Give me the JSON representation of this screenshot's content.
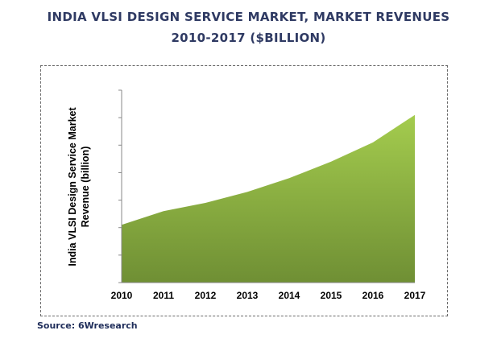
{
  "title_line1": "INDIA VLSI DESIGN SERVICE MARKET, MARKET REVENUES",
  "title_line2": "2010-2017 ($BILLION)",
  "source": "Source: 6Wresearch",
  "chart_data": {
    "type": "area",
    "title": "INDIA VLSI DESIGN SERVICE MARKET, MARKET REVENUES 2010-2017 ($BILLION)",
    "x": [
      "2010",
      "2011",
      "2012",
      "2013",
      "2014",
      "2015",
      "2016",
      "2017"
    ],
    "values": [
      2.1,
      2.6,
      2.9,
      3.3,
      3.8,
      4.4,
      5.1,
      6.1
    ],
    "ylabel_line1": "India VLSI Design Service Market",
    "ylabel_line2": "Revenue (billion)",
    "xlabel": "",
    "ylim": [
      0,
      7
    ],
    "yticks_labeled": false,
    "grid": false,
    "legend": "none",
    "fill_top_color": "#a4cc4e",
    "fill_bottom_color": "#6f8f34",
    "axis_color": "#888888"
  }
}
